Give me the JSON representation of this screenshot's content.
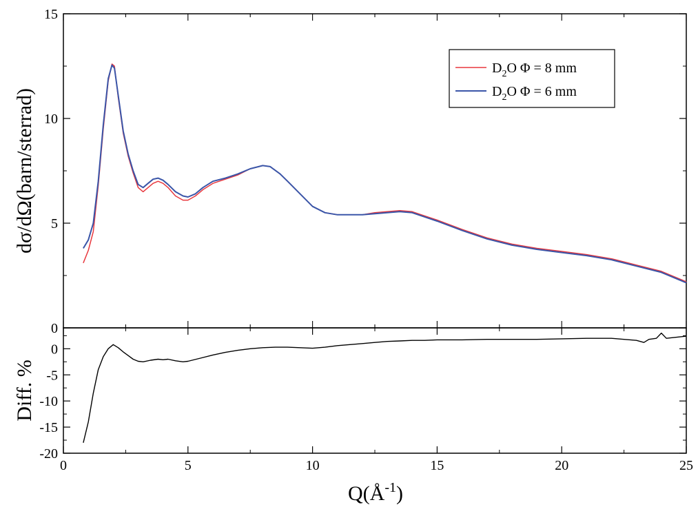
{
  "chart_data": [
    {
      "type": "line",
      "xlabel": "",
      "ylabel": "dσ/dΩ(barn/sterrad)",
      "xlim": [
        0,
        25
      ],
      "ylim": [
        0,
        15
      ],
      "y_ticks": [
        "0",
        "5",
        "10",
        "15"
      ],
      "grid": false,
      "legend_position": "top-right",
      "series": [
        {
          "name": "D2O  Φ = 8 mm",
          "legend_main": "D",
          "legend_sub": "2",
          "legend_rest": "O  Φ = 8 mm",
          "color": "#e8373d",
          "x": [
            0.8,
            1.0,
            1.2,
            1.4,
            1.6,
            1.8,
            1.95,
            2.05,
            2.2,
            2.4,
            2.6,
            2.8,
            3.0,
            3.2,
            3.4,
            3.6,
            3.8,
            4.0,
            4.2,
            4.5,
            4.8,
            5.0,
            5.3,
            5.6,
            6.0,
            6.5,
            7.0,
            7.5,
            8.0,
            8.3,
            8.7,
            9.0,
            9.5,
            10.0,
            10.5,
            11.0,
            11.5,
            12.0,
            12.5,
            13.0,
            13.5,
            14.0,
            14.5,
            15.0,
            16.0,
            17.0,
            18.0,
            19.0,
            20.0,
            21.0,
            22.0,
            23.0,
            24.0,
            25.0
          ],
          "y": [
            3.1,
            3.7,
            4.6,
            6.8,
            9.5,
            11.8,
            12.6,
            12.5,
            11.0,
            9.3,
            8.2,
            7.4,
            6.7,
            6.5,
            6.7,
            6.9,
            7.0,
            6.9,
            6.7,
            6.3,
            6.1,
            6.1,
            6.3,
            6.6,
            6.9,
            7.1,
            7.3,
            7.6,
            7.75,
            7.7,
            7.35,
            7.0,
            6.4,
            5.8,
            5.5,
            5.4,
            5.4,
            5.4,
            5.5,
            5.55,
            5.6,
            5.55,
            5.35,
            5.15,
            4.7,
            4.3,
            4.0,
            3.8,
            3.65,
            3.5,
            3.3,
            3.0,
            2.7,
            2.2
          ]
        },
        {
          "name": "D2O  Φ = 6 mm",
          "legend_main": "D",
          "legend_sub": "2",
          "legend_rest": "O  Φ = 6 mm",
          "color": "#3a55a8",
          "x": [
            0.8,
            1.0,
            1.2,
            1.4,
            1.6,
            1.8,
            1.95,
            2.05,
            2.2,
            2.4,
            2.6,
            2.8,
            3.0,
            3.2,
            3.4,
            3.6,
            3.8,
            4.0,
            4.2,
            4.5,
            4.8,
            5.0,
            5.3,
            5.6,
            6.0,
            6.5,
            7.0,
            7.5,
            8.0,
            8.3,
            8.7,
            9.0,
            9.5,
            10.0,
            10.5,
            11.0,
            11.5,
            12.0,
            12.5,
            13.0,
            13.5,
            14.0,
            14.5,
            15.0,
            16.0,
            17.0,
            18.0,
            19.0,
            20.0,
            21.0,
            22.0,
            23.0,
            24.0,
            25.0
          ],
          "y": [
            3.8,
            4.2,
            5.0,
            7.0,
            9.7,
            11.9,
            12.55,
            12.4,
            11.1,
            9.4,
            8.3,
            7.5,
            6.85,
            6.7,
            6.9,
            7.1,
            7.15,
            7.05,
            6.85,
            6.5,
            6.3,
            6.25,
            6.4,
            6.7,
            7.0,
            7.15,
            7.35,
            7.6,
            7.75,
            7.7,
            7.35,
            7.0,
            6.4,
            5.8,
            5.5,
            5.4,
            5.4,
            5.4,
            5.45,
            5.5,
            5.55,
            5.5,
            5.3,
            5.1,
            4.65,
            4.25,
            3.95,
            3.75,
            3.6,
            3.45,
            3.25,
            2.95,
            2.65,
            2.15
          ]
        }
      ]
    },
    {
      "type": "line",
      "xlabel_main": "Q(Å",
      "xlabel_sup": "-1",
      "xlabel_end": ")",
      "ylabel": "Diff. %",
      "xlim": [
        0,
        25
      ],
      "ylim": [
        -20,
        4
      ],
      "x_ticks": [
        "0",
        "5",
        "10",
        "15",
        "20",
        "25"
      ],
      "y_ticks": [
        "-20",
        "-15",
        "-10",
        "-5",
        "0"
      ],
      "grid": false,
      "series": [
        {
          "color": "#000000",
          "x": [
            0.8,
            1.0,
            1.2,
            1.4,
            1.6,
            1.8,
            2.0,
            2.2,
            2.4,
            2.6,
            2.8,
            3.0,
            3.2,
            3.5,
            3.8,
            4.0,
            4.2,
            4.5,
            4.8,
            5.0,
            5.5,
            6.0,
            6.5,
            7.0,
            7.5,
            8.0,
            8.5,
            9.0,
            9.5,
            10.0,
            10.5,
            11.0,
            11.5,
            12.0,
            12.5,
            13.0,
            13.5,
            14.0,
            14.5,
            15.0,
            16.0,
            17.0,
            18.0,
            19.0,
            20.0,
            21.0,
            22.0,
            22.5,
            23.0,
            23.3,
            23.5,
            23.8,
            24.0,
            24.2,
            25.0
          ],
          "y": [
            -18,
            -14,
            -8.5,
            -4,
            -1.5,
            0,
            0.8,
            0.2,
            -0.6,
            -1.3,
            -2.0,
            -2.4,
            -2.5,
            -2.2,
            -2.0,
            -2.1,
            -2.0,
            -2.3,
            -2.5,
            -2.4,
            -1.8,
            -1.2,
            -0.7,
            -0.3,
            0.0,
            0.2,
            0.3,
            0.3,
            0.2,
            0.1,
            0.3,
            0.6,
            0.8,
            1.0,
            1.2,
            1.4,
            1.5,
            1.6,
            1.6,
            1.7,
            1.7,
            1.8,
            1.8,
            1.8,
            1.9,
            2.0,
            2.0,
            1.8,
            1.6,
            1.2,
            1.8,
            2.0,
            3.0,
            2.0,
            2.4
          ]
        }
      ]
    }
  ]
}
